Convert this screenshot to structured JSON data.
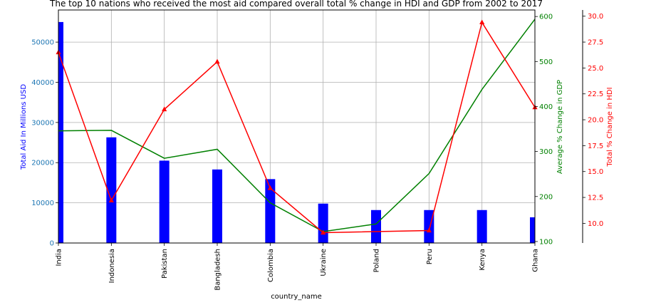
{
  "chart_data": {
    "type": "bar",
    "title": "The top 10 nations who received the most aid compared overall total % change in HDI and GDP from 2002 to 2017",
    "xlabel": "country_name",
    "categories": [
      "India",
      "Indonesia",
      "Pakistan",
      "Bangladesh",
      "Colombia",
      "Ukraine",
      "Poland",
      "Peru",
      "Kenya",
      "Ghana"
    ],
    "grid": true,
    "axes": {
      "left": {
        "label": "Total Aid In Millions USD",
        "color": "#0000ff",
        "tick_color": "#1f77b4",
        "ylim": [
          0,
          58000
        ],
        "ticks": [
          0,
          10000,
          20000,
          30000,
          40000,
          50000
        ]
      },
      "right1": {
        "label": "Average % Change in GDP",
        "color": "#008000",
        "ylim": [
          96.7,
          614.5
        ],
        "ticks": [
          100,
          200,
          300,
          400,
          500,
          600
        ]
      },
      "right2": {
        "label": "Total % Change in HDI",
        "color": "#ff0000",
        "ylim": [
          8.1,
          30.6
        ],
        "ticks": [
          10.0,
          12.5,
          15.0,
          17.5,
          20.0,
          22.5,
          25.0,
          27.5,
          30.0
        ]
      }
    },
    "series": [
      {
        "type": "bar",
        "axis": "left",
        "color": "#0000ff",
        "values": [
          55000,
          26300,
          20500,
          18300,
          15900,
          9800,
          8200,
          8200,
          8200,
          6400
        ]
      },
      {
        "type": "line",
        "axis": "right1",
        "color": "#008000",
        "values": [
          346,
          347,
          285,
          305,
          186,
          122,
          139,
          251,
          438,
          594
        ]
      },
      {
        "type": "line",
        "axis": "right2",
        "color": "#ff0000",
        "marker": "triangle",
        "values": [
          26.5,
          12.2,
          21.0,
          25.6,
          13.4,
          9.1,
          null,
          9.3,
          29.4,
          21.2
        ]
      }
    ]
  }
}
